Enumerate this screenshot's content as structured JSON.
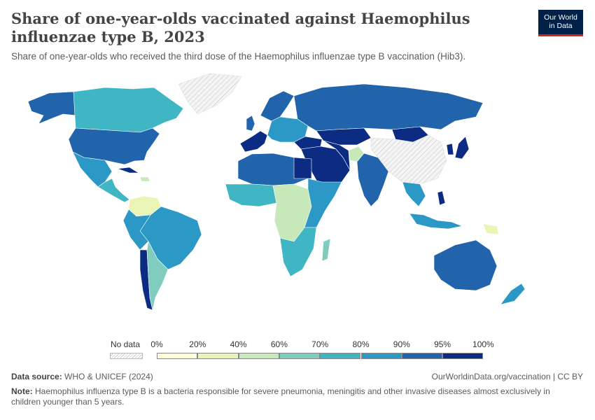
{
  "title": "Share of one-year-olds vaccinated against Haemophilus influenzae type B, 2023",
  "subtitle": "Share of one-year-olds who received the third dose of the Haemophilus influenzae type B vaccination (Hib3).",
  "logo": {
    "line1": "Our World",
    "line2": "in Data"
  },
  "legend": {
    "no_data_label": "No data",
    "ticks": [
      "0%",
      "20%",
      "40%",
      "60%",
      "70%",
      "80%",
      "90%",
      "95%",
      "100%"
    ],
    "colors": [
      "#fefed9",
      "#eaf4b5",
      "#c7e8b8",
      "#80ccbe",
      "#40b6c4",
      "#2c98c5",
      "#2164ab",
      "#0c2c84"
    ]
  },
  "footer": {
    "source_label": "Data source:",
    "source": "WHO & UNICEF (2024)",
    "url": "OurWorldinData.org/vaccination | CC BY",
    "note_label": "Note:",
    "note": "Haemophilus influenza type B is a bacteria responsible for severe pneumonia, meningitis and other invasive diseases almost exclusively in children younger than 5 years."
  },
  "colors": {
    "no_data": "#e8e8e8",
    "border": "#ffffff"
  }
}
